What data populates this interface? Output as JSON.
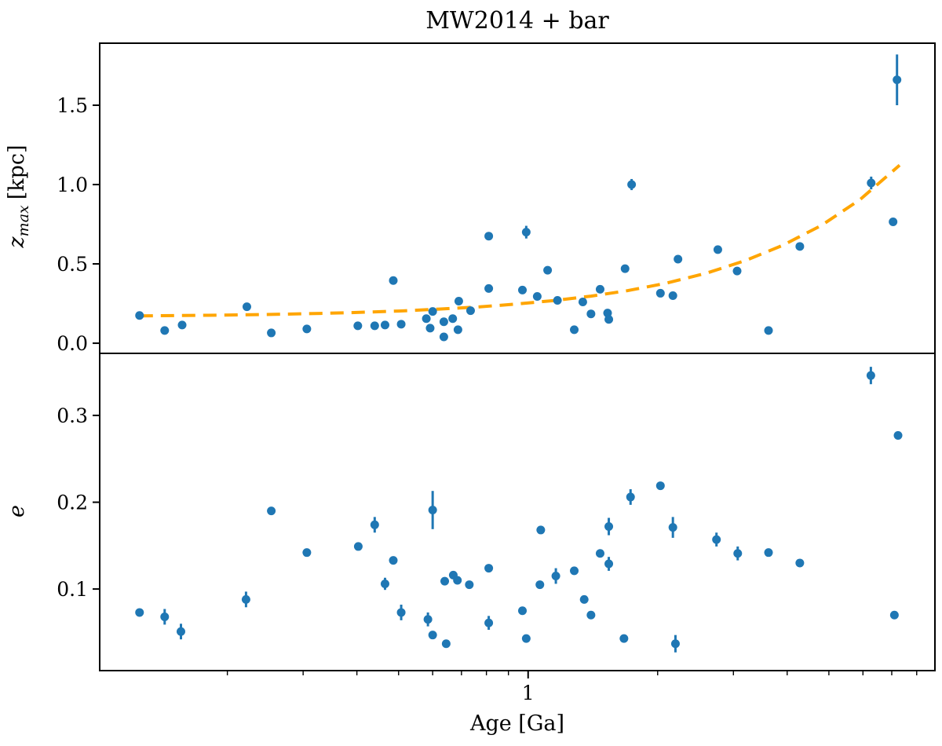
{
  "figure": {
    "title": "MW2014 + bar",
    "background_color": "#ffffff",
    "marker_color": "#1f77b4",
    "trend_color": "#ffa500",
    "spine_color": "#000000"
  },
  "x_axis": {
    "label": "Age [Ga]",
    "scale": "log",
    "xlim": [
      0.101,
      8.82
    ],
    "major_ticks": [
      1
    ],
    "major_tick_labels": [
      "1"
    ],
    "minor_ticks": [
      0.2,
      0.3,
      0.4,
      0.5,
      0.6,
      0.7,
      0.8,
      0.9,
      2,
      3,
      4,
      5,
      6,
      7,
      8
    ]
  },
  "chart_data": [
    {
      "id": "zmax-panel",
      "type": "scatter",
      "ylabel": "z_max [kpc]",
      "ylabel_parts": {
        "var": "z",
        "sub": "max",
        "unit": "[kpc]"
      },
      "x_scale": "log",
      "xlim": [
        0.101,
        8.82
      ],
      "ylim": [
        -0.064,
        1.891
      ],
      "yticks": [
        0.0,
        0.5,
        1.0,
        1.5
      ],
      "ytick_labels": [
        "0.0",
        "0.5",
        "1.0",
        "1.5"
      ],
      "grid": false,
      "points_format": [
        "age_Ga",
        "zmax_kpc",
        "err_kpc"
      ],
      "points": [
        [
          0.125,
          0.175,
          0
        ],
        [
          0.143,
          0.08,
          0
        ],
        [
          0.157,
          0.115,
          0
        ],
        [
          0.222,
          0.23,
          0
        ],
        [
          0.253,
          0.065,
          0
        ],
        [
          0.306,
          0.09,
          0
        ],
        [
          0.402,
          0.11,
          0
        ],
        [
          0.44,
          0.11,
          0
        ],
        [
          0.465,
          0.115,
          0
        ],
        [
          0.486,
          0.395,
          0
        ],
        [
          0.507,
          0.12,
          0
        ],
        [
          0.58,
          0.155,
          0
        ],
        [
          0.592,
          0.095,
          0
        ],
        [
          0.6,
          0.2,
          0
        ],
        [
          0.637,
          0.135,
          0
        ],
        [
          0.637,
          0.04,
          0
        ],
        [
          0.668,
          0.155,
          0
        ],
        [
          0.687,
          0.085,
          0
        ],
        [
          0.69,
          0.265,
          0
        ],
        [
          0.735,
          0.205,
          0
        ],
        [
          0.81,
          0.675,
          0.02
        ],
        [
          0.81,
          0.345,
          0
        ],
        [
          0.97,
          0.335,
          0
        ],
        [
          0.99,
          0.7,
          0.04
        ],
        [
          1.05,
          0.295,
          0
        ],
        [
          1.11,
          0.46,
          0
        ],
        [
          1.17,
          0.27,
          0
        ],
        [
          1.28,
          0.085,
          0
        ],
        [
          1.34,
          0.26,
          0
        ],
        [
          1.4,
          0.185,
          0
        ],
        [
          1.47,
          0.34,
          0
        ],
        [
          1.53,
          0.19,
          0
        ],
        [
          1.54,
          0.15,
          0
        ],
        [
          1.68,
          0.47,
          0
        ],
        [
          1.74,
          1.0,
          0.035
        ],
        [
          2.03,
          0.315,
          0
        ],
        [
          2.17,
          0.3,
          0
        ],
        [
          2.23,
          0.53,
          0.018
        ],
        [
          2.76,
          0.59,
          0
        ],
        [
          3.06,
          0.455,
          0
        ],
        [
          3.62,
          0.08,
          0
        ],
        [
          4.28,
          0.61,
          0.025
        ],
        [
          6.27,
          1.01,
          0.04
        ],
        [
          7.05,
          0.765,
          0.022
        ],
        [
          7.2,
          1.66,
          0.16
        ]
      ],
      "trend": {
        "style": "dashed",
        "points": [
          [
            0.125,
            0.172
          ],
          [
            0.15,
            0.174
          ],
          [
            0.18,
            0.176
          ],
          [
            0.22,
            0.179
          ],
          [
            0.27,
            0.183
          ],
          [
            0.33,
            0.188
          ],
          [
            0.4,
            0.194
          ],
          [
            0.5,
            0.203
          ],
          [
            0.62,
            0.215
          ],
          [
            0.76,
            0.228
          ],
          [
            0.93,
            0.246
          ],
          [
            1.15,
            0.269
          ],
          [
            1.4,
            0.297
          ],
          [
            1.7,
            0.331
          ],
          [
            2.1,
            0.379
          ],
          [
            2.6,
            0.442
          ],
          [
            3.2,
            0.521
          ],
          [
            3.9,
            0.616
          ],
          [
            4.8,
            0.742
          ],
          [
            5.9,
            0.904
          ],
          [
            7.3,
            1.122
          ]
        ]
      }
    },
    {
      "id": "e-panel",
      "type": "scatter",
      "ylabel": "e",
      "x_scale": "log",
      "xlim": [
        0.101,
        8.82
      ],
      "ylim": [
        0.006,
        0.3715
      ],
      "yticks": [
        0.1,
        0.2,
        0.3
      ],
      "ytick_labels": [
        "0.1",
        "0.2",
        "0.3"
      ],
      "grid": false,
      "points_format": [
        "age_Ga",
        "eccentricity",
        "err"
      ],
      "points": [
        [
          0.125,
          0.073,
          0
        ],
        [
          0.143,
          0.068,
          0.009
        ],
        [
          0.156,
          0.051,
          0.009
        ],
        [
          0.221,
          0.088,
          0.009
        ],
        [
          0.253,
          0.19,
          0
        ],
        [
          0.306,
          0.142,
          0
        ],
        [
          0.403,
          0.149,
          0
        ],
        [
          0.44,
          0.174,
          0.009
        ],
        [
          0.465,
          0.106,
          0.007
        ],
        [
          0.486,
          0.133,
          0
        ],
        [
          0.507,
          0.073,
          0.009
        ],
        [
          0.585,
          0.065,
          0.008
        ],
        [
          0.6,
          0.191,
          0.022
        ],
        [
          0.6,
          0.047,
          0
        ],
        [
          0.645,
          0.037,
          0
        ],
        [
          0.64,
          0.109,
          0
        ],
        [
          0.67,
          0.116,
          0
        ],
        [
          0.685,
          0.11,
          0
        ],
        [
          0.73,
          0.105,
          0
        ],
        [
          0.81,
          0.124,
          0
        ],
        [
          0.81,
          0.061,
          0.008
        ],
        [
          0.97,
          0.075,
          0
        ],
        [
          0.99,
          0.043,
          0
        ],
        [
          1.07,
          0.168,
          0
        ],
        [
          1.065,
          0.105,
          0
        ],
        [
          1.16,
          0.115,
          0.009
        ],
        [
          1.28,
          0.121,
          0
        ],
        [
          1.35,
          0.088,
          0
        ],
        [
          1.4,
          0.07,
          0
        ],
        [
          1.47,
          0.141,
          0
        ],
        [
          1.54,
          0.172,
          0.01
        ],
        [
          1.54,
          0.129,
          0.008
        ],
        [
          1.67,
          0.043,
          0
        ],
        [
          1.73,
          0.206,
          0.009
        ],
        [
          2.03,
          0.219,
          0
        ],
        [
          2.17,
          0.171,
          0.012
        ],
        [
          2.2,
          0.037,
          0.01
        ],
        [
          2.74,
          0.157,
          0.008
        ],
        [
          3.07,
          0.141,
          0.008
        ],
        [
          3.62,
          0.142,
          0
        ],
        [
          4.28,
          0.13,
          0
        ],
        [
          6.26,
          0.346,
          0.01
        ],
        [
          7.1,
          0.07,
          0
        ],
        [
          7.24,
          0.277,
          0
        ]
      ]
    }
  ]
}
